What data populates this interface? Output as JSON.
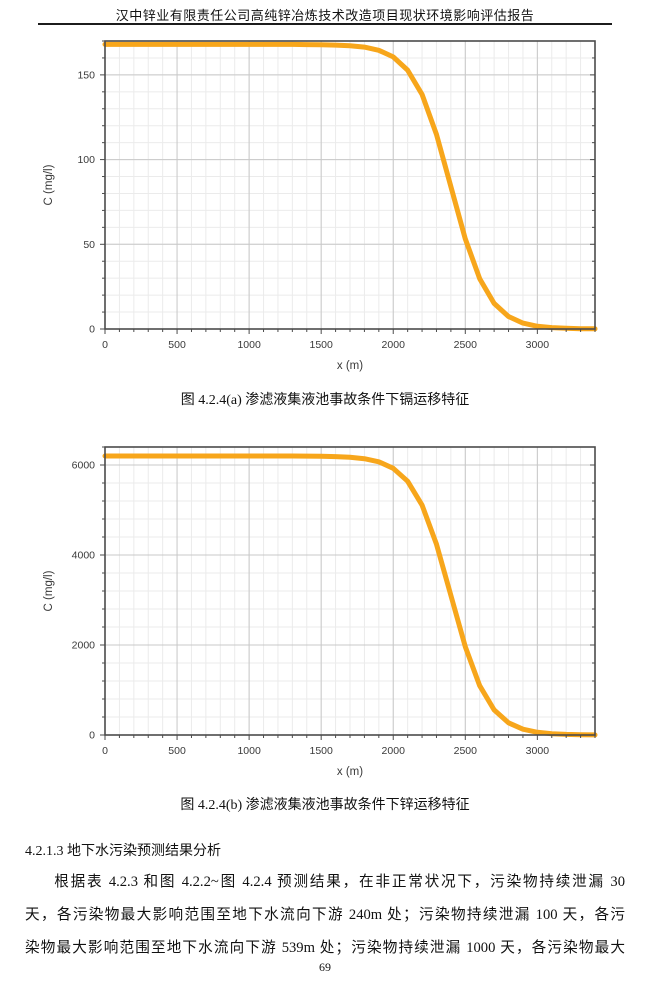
{
  "header": {
    "title": "汉中锌业有限责任公司高纯锌冶炼技术改造项目现状环境影响评估报告"
  },
  "section": {
    "heading": "4.2.1.3 地下水污染预测结果分析",
    "paragraph_lines": [
      "根据表 4.2.3 和图 4.2.2~图 4.2.4 预测结果，在非正常状况下，污染物持续泄漏 30",
      "天，各污染物最大影响范围至地下水流向下游 240m 处；污染物持续泄漏 100 天，各污",
      "染物最大影响范围至地下水流向下游 539m 处；污染物持续泄漏 1000 天，各污染物最大"
    ]
  },
  "footer": {
    "page_number": "69"
  },
  "chart_data": [
    {
      "type": "line",
      "caption": "图 4.2.4(a)   渗滤液集液池事故条件下镉运移特征",
      "xlabel": "x (m)",
      "ylabel": "C (mg/l)",
      "xlim": [
        0,
        3400
      ],
      "ylim": [
        0,
        170
      ],
      "x_tick_labels": [
        0,
        500,
        1000,
        1500,
        2000,
        2500,
        3000
      ],
      "y_tick_labels": [
        0,
        50,
        100,
        150
      ],
      "x_minor_step": 100,
      "x_major_step": 500,
      "y_minor_step": 10,
      "grid": true,
      "legend": "none",
      "series": [
        {
          "name": "镉浓度",
          "color": "#F7A61B",
          "x": [
            0,
            100,
            200,
            300,
            400,
            500,
            600,
            700,
            800,
            900,
            1000,
            1100,
            1200,
            1300,
            1400,
            1500,
            1600,
            1700,
            1800,
            1900,
            2000,
            2100,
            2200,
            2300,
            2400,
            2500,
            2600,
            2700,
            2800,
            2900,
            3000,
            3100,
            3200,
            3300,
            3400
          ],
          "values": [
            168,
            168,
            168,
            168,
            168,
            168,
            168,
            168,
            168,
            168,
            168,
            168,
            168,
            168,
            167.9,
            167.8,
            167.6,
            167.2,
            166.4,
            164.5,
            160.6,
            152.8,
            138.4,
            114.8,
            84,
            53.2,
            29.7,
            15.1,
            7.4,
            3.5,
            1.6,
            0.8,
            0.4,
            0.2,
            0.1
          ]
        }
      ]
    },
    {
      "type": "line",
      "caption": "图 4.2.4(b)   渗滤液集液池事故条件下锌运移特征",
      "xlabel": "x (m)",
      "ylabel": "C (mg/l)",
      "xlim": [
        0,
        3400
      ],
      "ylim": [
        0,
        6400
      ],
      "x_tick_labels": [
        0,
        500,
        1000,
        1500,
        2000,
        2500,
        3000
      ],
      "y_tick_labels": [
        0,
        2000,
        4000,
        6000
      ],
      "x_minor_step": 100,
      "x_major_step": 500,
      "y_minor_step": 400,
      "grid": true,
      "legend": "none",
      "series": [
        {
          "name": "锌浓度",
          "color": "#F7A61B",
          "x": [
            0,
            100,
            200,
            300,
            400,
            500,
            600,
            700,
            800,
            900,
            1000,
            1100,
            1200,
            1300,
            1400,
            1500,
            1600,
            1700,
            1800,
            1900,
            2000,
            2100,
            2200,
            2300,
            2400,
            2500,
            2600,
            2700,
            2800,
            2900,
            3000,
            3100,
            3200,
            3300,
            3400
          ],
          "values": [
            6200,
            6200,
            6200,
            6200,
            6200,
            6200,
            6200,
            6200,
            6200,
            6200,
            6200,
            6200,
            6200,
            6199,
            6197,
            6194,
            6187,
            6172,
            6139,
            6071,
            5927,
            5640,
            5107,
            4238,
            3100,
            1962,
            1095,
            558,
            272,
            129,
            61,
            28,
            13,
            6,
            3
          ]
        }
      ]
    }
  ]
}
